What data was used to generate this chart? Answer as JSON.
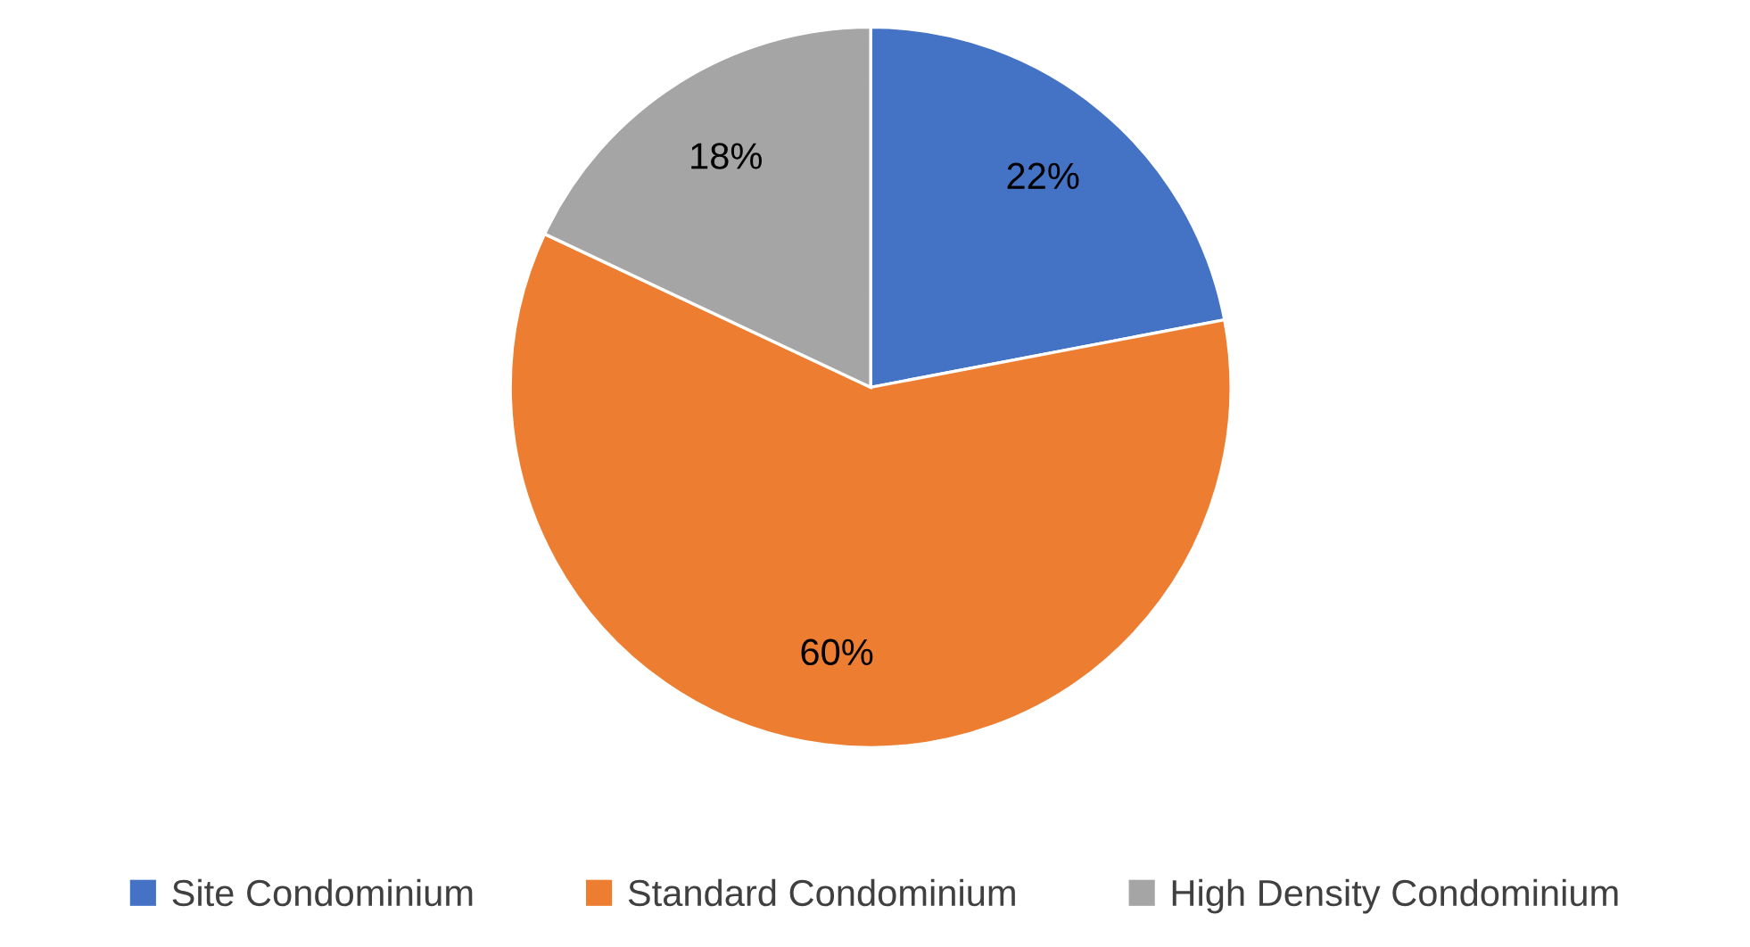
{
  "chart_data": {
    "type": "pie",
    "categories": [
      "Site Condominium",
      "Standard Condominium",
      "High Density Condominium"
    ],
    "values": [
      22,
      60,
      18
    ],
    "colors": [
      "#4472c4",
      "#ed7d31",
      "#a5a5a5"
    ],
    "value_labels": [
      "22%",
      "60%",
      "18%"
    ],
    "legend": "bottom"
  }
}
